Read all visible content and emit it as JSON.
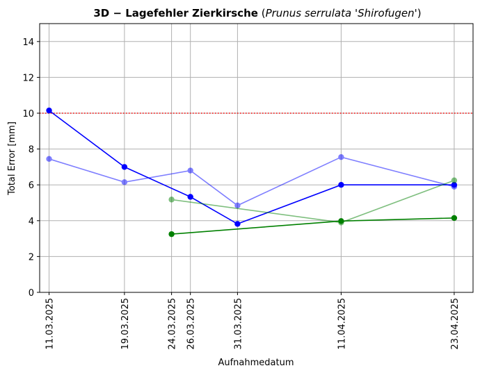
{
  "chart_data": {
    "type": "line",
    "title_bold": "3D − Lagefehler Zierkirsche",
    "title_italic": "Prunus serrulata 'Shirofugen'",
    "xlabel": "Aufnahmedatum",
    "ylabel": "Total Error [mm]",
    "ylim": [
      0,
      15
    ],
    "yticks": [
      0,
      2,
      4,
      6,
      8,
      10,
      12,
      14
    ],
    "x_dates": [
      "11.03.2025",
      "19.03.2025",
      "24.03.2025",
      "26.03.2025",
      "31.03.2025",
      "11.04.2025",
      "23.04.2025"
    ],
    "x_range": [
      "10.03.2025",
      "25.04.2025"
    ],
    "grid": true,
    "threshold": {
      "value": 10,
      "color": "#ff0000",
      "style": "dotted"
    },
    "series": [
      {
        "color": "#0000ff",
        "opacity": 0.5,
        "points": [
          {
            "x": "11.03.2025",
            "y": 7.45
          },
          {
            "x": "19.03.2025",
            "y": 6.15
          },
          {
            "x": "26.03.2025",
            "y": 6.8
          },
          {
            "x": "31.03.2025",
            "y": 4.85
          },
          {
            "x": "11.04.2025",
            "y": 7.55
          },
          {
            "x": "23.04.2025",
            "y": 5.9
          }
        ]
      },
      {
        "color": "#0000ff",
        "opacity": 1,
        "points": [
          {
            "x": "11.03.2025",
            "y": 10.15
          },
          {
            "x": "19.03.2025",
            "y": 7.0
          },
          {
            "x": "26.03.2025",
            "y": 5.33
          },
          {
            "x": "31.03.2025",
            "y": 3.82
          },
          {
            "x": "11.04.2025",
            "y": 6.0
          },
          {
            "x": "23.04.2025",
            "y": 6.0
          }
        ]
      },
      {
        "color": "#008000",
        "opacity": 0.5,
        "points": [
          {
            "x": "24.03.2025",
            "y": 5.18
          },
          {
            "x": "11.04.2025",
            "y": 3.9
          },
          {
            "x": "23.04.2025",
            "y": 6.25
          }
        ]
      },
      {
        "color": "#008000",
        "opacity": 1,
        "points": [
          {
            "x": "24.03.2025",
            "y": 3.25
          },
          {
            "x": "11.04.2025",
            "y": 3.98
          },
          {
            "x": "23.04.2025",
            "y": 4.15
          }
        ]
      }
    ]
  }
}
